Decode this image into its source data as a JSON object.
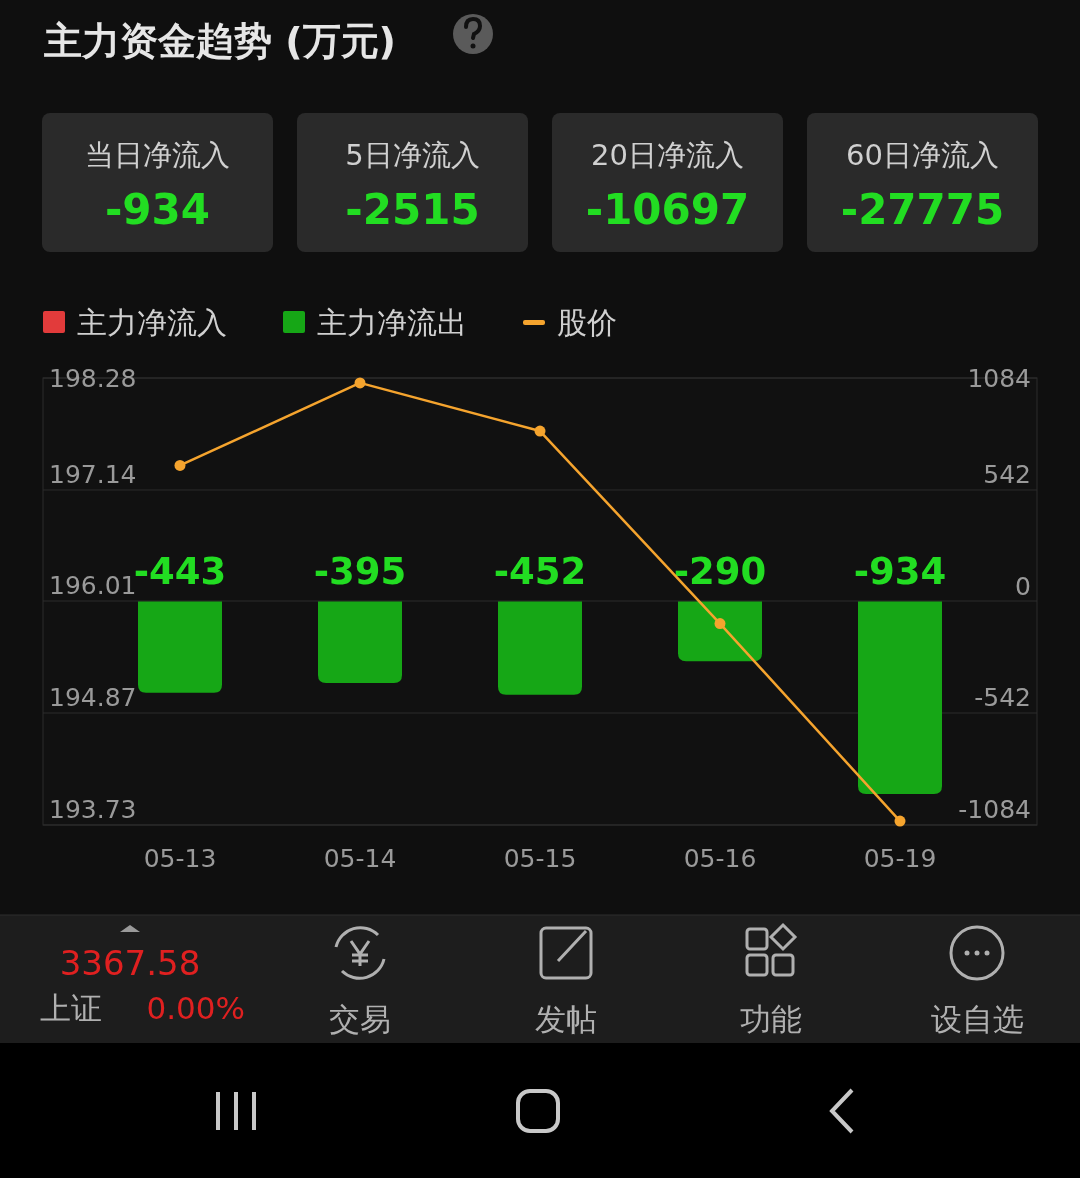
{
  "chart_data": [
    {
      "type": "other",
      "title": "主力资金趋势 (万元)",
      "annotations": [
        "当日净流入",
        "-934",
        "5日净流入",
        "-2515",
        "20日净流入",
        "-10697",
        "60日净流入",
        "-27775"
      ]
    },
    {
      "type": "bar",
      "categories": [
        "05-13",
        "05-14",
        "05-15",
        "05-16",
        "05-19"
      ],
      "series": [
        {
          "name": "主力净流入",
          "color": "#e23b3b",
          "axis": "y2",
          "values": [
            null,
            null,
            null,
            null,
            null
          ]
        },
        {
          "name": "主力净流出",
          "color": "#16a716",
          "axis": "y2",
          "values": [
            -443,
            -395,
            -452,
            -290,
            -934
          ],
          "value_labels": [
            "-443",
            "-395",
            "-452",
            "-290",
            "-934"
          ]
        },
        {
          "name": "股价",
          "type": "line",
          "color": "#f5a42e",
          "axis": "y",
          "values": [
            197.39,
            198.23,
            197.74,
            195.78,
            193.77
          ]
        }
      ],
      "ylim": [
        193.73,
        198.28
      ],
      "yticks": [
        198.28,
        197.14,
        196.01,
        194.87,
        193.73
      ],
      "y2lim": [
        -1084,
        1084
      ],
      "y2ticks": [
        1084,
        542,
        0,
        -542,
        -1084
      ],
      "grid": "y",
      "legend": "top left",
      "marker": "circle"
    },
    {
      "type": "other",
      "annotations": [
        "3367.58",
        "上证",
        "0.00%",
        "交易",
        "发帖",
        "功能",
        "设自选"
      ]
    }
  ]
}
